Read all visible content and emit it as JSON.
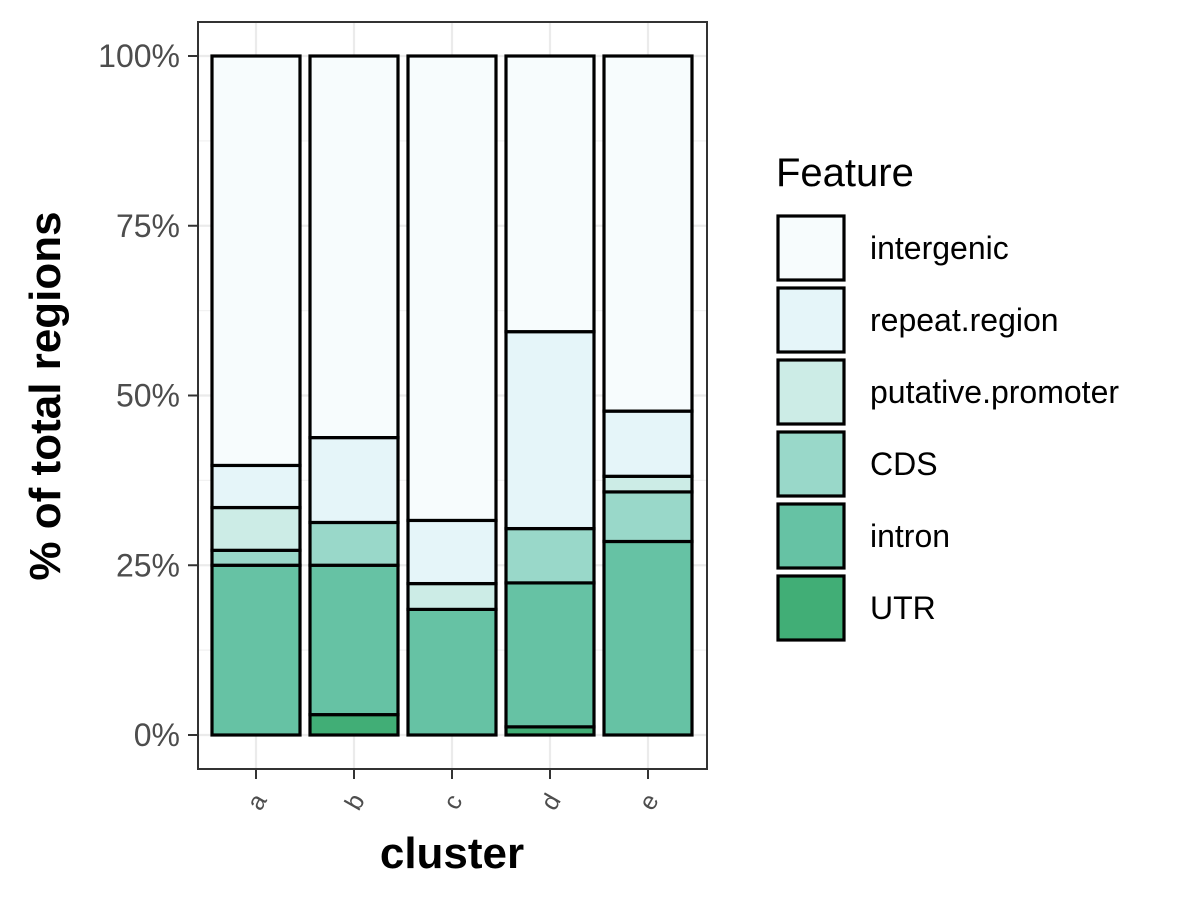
{
  "chart_data": {
    "type": "bar",
    "stacked": true,
    "categories": [
      "a",
      "b",
      "c",
      "d",
      "e"
    ],
    "xlabel": "cluster",
    "ylabel": "% of total regions",
    "ylim": [
      0,
      100
    ],
    "yticks": [
      "0%",
      "25%",
      "50%",
      "75%",
      "100%"
    ],
    "grid": true,
    "legend": {
      "title": "Feature",
      "position": "right"
    },
    "series": [
      {
        "name": "UTR",
        "color": "#41ae76",
        "values": [
          0,
          3,
          0,
          1.2,
          0
        ]
      },
      {
        "name": "intron",
        "color": "#66c2a4",
        "values": [
          25,
          22,
          18.5,
          21.2,
          28.5
        ]
      },
      {
        "name": "CDS",
        "color": "#99d8c9",
        "values": [
          2.2,
          6.3,
          0,
          8,
          7.3
        ]
      },
      {
        "name": "putative.promoter",
        "color": "#ccece6",
        "values": [
          6.3,
          0,
          3.8,
          0,
          2.3
        ]
      },
      {
        "name": "repeat.region",
        "color": "#e5f5f9",
        "values": [
          6.2,
          12.5,
          9.3,
          29,
          9.6
        ]
      },
      {
        "name": "intergenic",
        "color": "#f7fcfd",
        "values": [
          60.3,
          56.2,
          68.4,
          40.6,
          52.3
        ]
      }
    ]
  }
}
